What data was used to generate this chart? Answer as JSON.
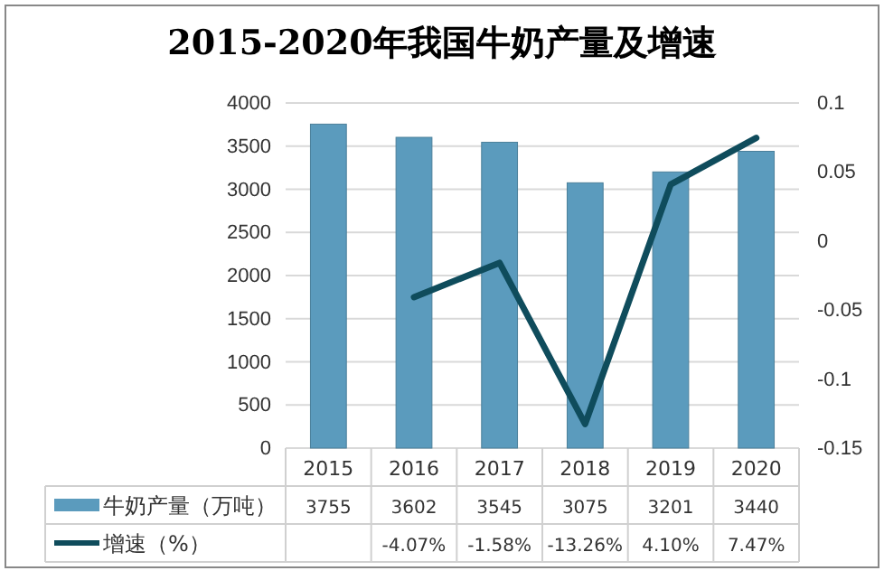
{
  "chart_data": {
    "type": "bar",
    "title": "2015-2020年我国牛奶产量及增速",
    "categories": [
      "2015",
      "2016",
      "2017",
      "2018",
      "2019",
      "2020"
    ],
    "series": [
      {
        "name": "牛奶产量（万吨）",
        "color": "#5b9bbd",
        "values": [
          3755,
          3602,
          3545,
          3075,
          3201,
          3440
        ],
        "value_labels": [
          "3755",
          "3602",
          "3545",
          "3075",
          "3201",
          "3440"
        ]
      },
      {
        "name": "增速（%）",
        "type": "line",
        "axis": "y2",
        "color": "#0f4c5c",
        "values": [
          null,
          -0.0407,
          -0.0158,
          -0.1326,
          0.041,
          0.0747
        ],
        "value_labels": [
          null,
          "-4.07%",
          "-1.58%",
          "-13.26%",
          "4.10%",
          "7.47%"
        ]
      }
    ],
    "ylim": [
      0,
      4000
    ],
    "yticks": [
      0,
      500,
      1000,
      1500,
      2000,
      2500,
      3000,
      3500,
      4000
    ],
    "y2lim": [
      -0.15,
      0.1
    ],
    "y2ticks": [
      -0.15,
      -0.1,
      -0.05,
      0,
      0.05,
      0.1
    ],
    "grid": "y",
    "legend": "bottom",
    "marker": "none",
    "line_style": "solid"
  }
}
